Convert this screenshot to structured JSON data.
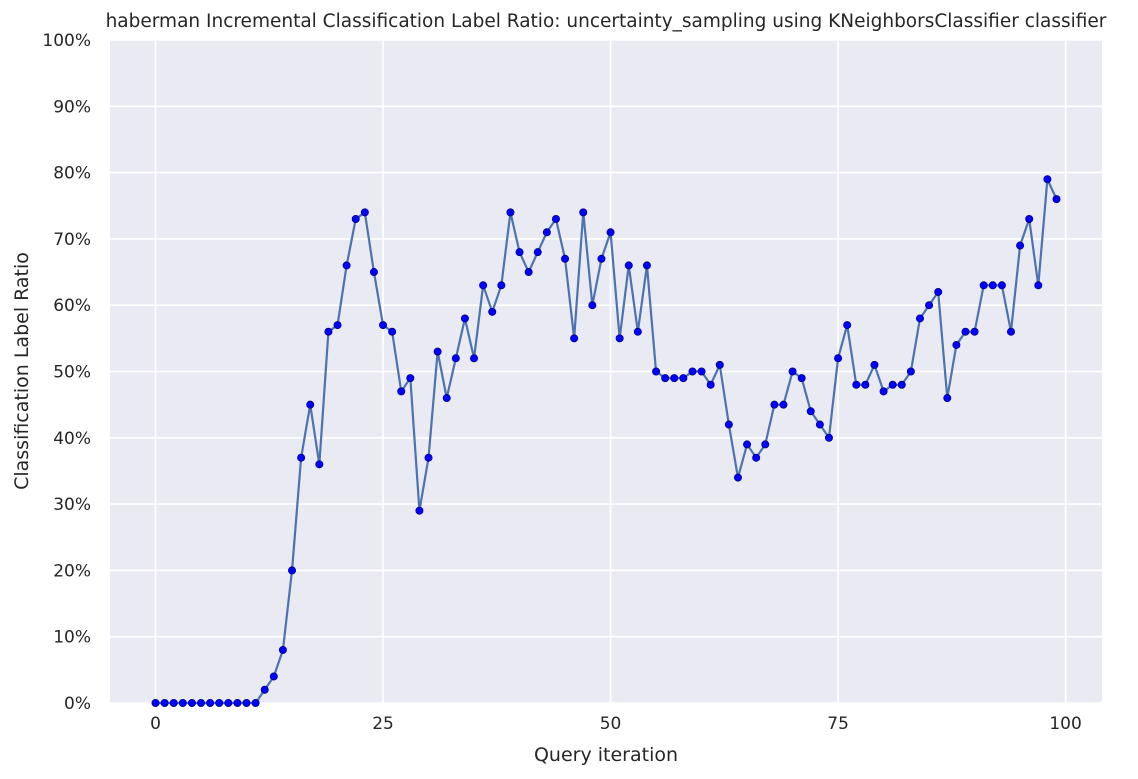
{
  "chart_data": {
    "type": "line",
    "title": "haberman Incremental Classification Label Ratio: uncertainty_sampling using KNeighborsClassifier classifier",
    "xlabel": "Query iteration",
    "ylabel": "Classification Label Ratio",
    "xlim": [
      -5,
      104
    ],
    "ylim": [
      0,
      100
    ],
    "x_ticks": [
      0,
      25,
      50,
      75,
      100
    ],
    "y_ticks": [
      0,
      10,
      20,
      30,
      40,
      50,
      60,
      70,
      80,
      90,
      100
    ],
    "y_tick_format": "percent",
    "grid": true,
    "legend": "none",
    "colors": {
      "background": "#eaeaf2",
      "grid": "#ffffff",
      "line": "#4c72b0",
      "marker": "#0000ff"
    },
    "series": [
      {
        "x": [
          0,
          1,
          2,
          3,
          4,
          5,
          6,
          7,
          8,
          9,
          10,
          11,
          12,
          13,
          14,
          15,
          16,
          17,
          18,
          19,
          20,
          21,
          22,
          23,
          24,
          25,
          26,
          27,
          28,
          29,
          30,
          31,
          32,
          33,
          34,
          35,
          36,
          37,
          38,
          39,
          40,
          41,
          42,
          43,
          44,
          45,
          46,
          47,
          48,
          49,
          50,
          51,
          52,
          53,
          54,
          55,
          56,
          57,
          58,
          59,
          60,
          61,
          62,
          63,
          64,
          65,
          66,
          67,
          68,
          69,
          70,
          71,
          72,
          73,
          74,
          75,
          76,
          77,
          78,
          79,
          80,
          81,
          82,
          83,
          84,
          85,
          86,
          87,
          88,
          89,
          90,
          91,
          92,
          93,
          94,
          95,
          96,
          97,
          98,
          99
        ],
        "values": [
          0,
          0,
          0,
          0,
          0,
          0,
          0,
          0,
          0,
          0,
          0,
          0,
          2,
          4,
          8,
          20,
          37,
          45,
          36,
          56,
          57,
          66,
          73,
          74,
          65,
          57,
          56,
          47,
          49,
          29,
          37,
          53,
          46,
          52,
          58,
          52,
          63,
          59,
          63,
          74,
          68,
          65,
          68,
          71,
          73,
          67,
          55,
          74,
          60,
          67,
          71,
          55,
          66,
          56,
          66,
          50,
          49,
          49,
          49,
          50,
          50,
          48,
          51,
          42,
          34,
          39,
          37,
          39,
          45,
          45,
          50,
          49,
          44,
          42,
          40,
          52,
          57,
          48,
          48,
          51,
          47,
          48,
          48,
          50,
          58,
          60,
          62,
          46,
          54,
          56,
          56,
          63,
          63,
          63,
          56,
          69,
          73,
          63,
          79,
          76
        ]
      }
    ]
  }
}
